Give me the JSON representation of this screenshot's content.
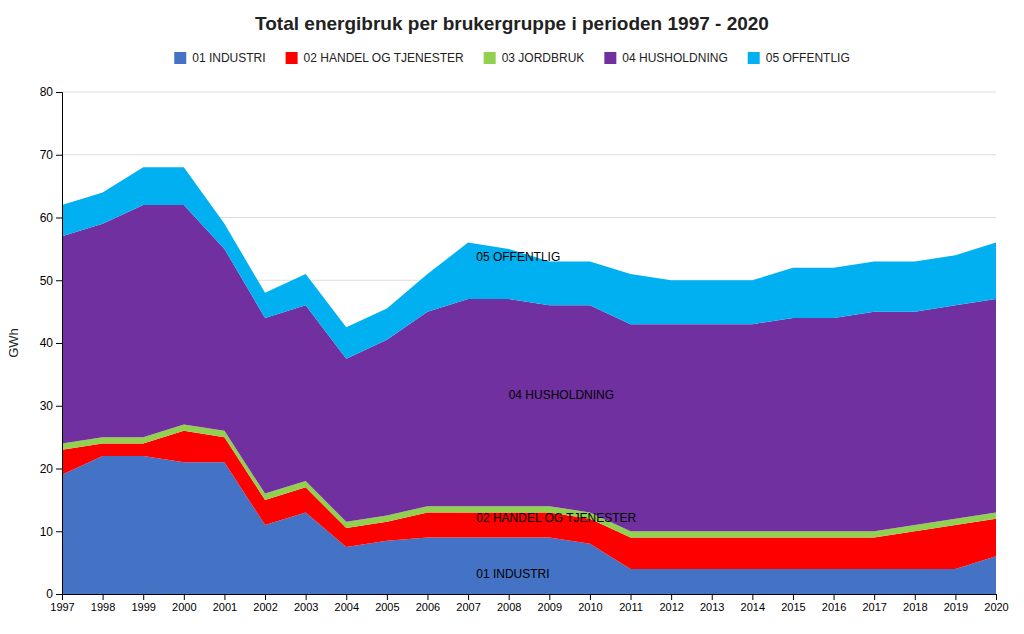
{
  "chart_data": {
    "type": "area",
    "stacked": true,
    "title": "Total energibruk per brukergruppe i perioden 1997 - 2020",
    "ylabel": "GWh",
    "x": [
      1997,
      1998,
      1999,
      2000,
      2001,
      2002,
      2003,
      2004,
      2005,
      2006,
      2007,
      2008,
      2009,
      2010,
      2011,
      2012,
      2013,
      2014,
      2015,
      2016,
      2017,
      2018,
      2019,
      2020
    ],
    "series": [
      {
        "name": "01 INDUSTRI",
        "color": "#4472C4",
        "values": [
          19,
          22,
          22,
          21,
          21,
          11,
          13,
          7.5,
          8.5,
          9,
          9,
          9,
          9,
          8,
          4,
          4,
          4,
          4,
          4,
          4,
          4,
          4,
          4,
          6
        ]
      },
      {
        "name": "02 HANDEL OG TJENESTER",
        "color": "#FF0000",
        "values": [
          4,
          2,
          2,
          5,
          4,
          4,
          4,
          3,
          3,
          4,
          4,
          4,
          4,
          4,
          5,
          5,
          5,
          5,
          5,
          5,
          5,
          6,
          7,
          6
        ]
      },
      {
        "name": "03 JORDBRUK",
        "color": "#92D050",
        "values": [
          1,
          1,
          1,
          1,
          1,
          1,
          1,
          1,
          1,
          1,
          1,
          1,
          1,
          1,
          1,
          1,
          1,
          1,
          1,
          1,
          1,
          1,
          1,
          1
        ]
      },
      {
        "name": "04 HUSHOLDNING",
        "color": "#7030A0",
        "values": [
          33,
          34,
          37,
          35,
          29,
          28,
          28,
          26,
          28,
          31,
          33,
          33,
          32,
          33,
          33,
          33,
          33,
          33,
          34,
          34,
          35,
          34,
          34,
          34
        ]
      },
      {
        "name": "05 OFFENTLIG",
        "color": "#00B0F0",
        "values": [
          5,
          5,
          6,
          6,
          4,
          4,
          5,
          5,
          5,
          6,
          9,
          8,
          7,
          7,
          8,
          7,
          7,
          7,
          8,
          8,
          8,
          8,
          8,
          9
        ]
      }
    ],
    "xlim": [
      1997,
      2020
    ],
    "xticks": [
      1997,
      1998,
      1999,
      2000,
      2001,
      2002,
      2003,
      2004,
      2005,
      2006,
      2007,
      2008,
      2009,
      2010,
      2011,
      2012,
      2013,
      2014,
      2015,
      2016,
      2017,
      2018,
      2019,
      2020
    ],
    "ylim": [
      0,
      80
    ],
    "yticks": [
      0,
      10,
      20,
      30,
      40,
      50,
      60,
      70,
      80
    ],
    "grid": true,
    "legend": "top",
    "annotations": [
      {
        "text": "01 INDUSTRI",
        "x": 2007.2,
        "y": 2.5
      },
      {
        "text": "02 HANDEL OG TJENESTER",
        "x": 2007.2,
        "y": 11.5
      },
      {
        "text": "04 HUSHOLDNING",
        "x": 2008.0,
        "y": 31.0
      },
      {
        "text": "05 OFFENTLIG",
        "x": 2007.2,
        "y": 53.0
      }
    ]
  }
}
